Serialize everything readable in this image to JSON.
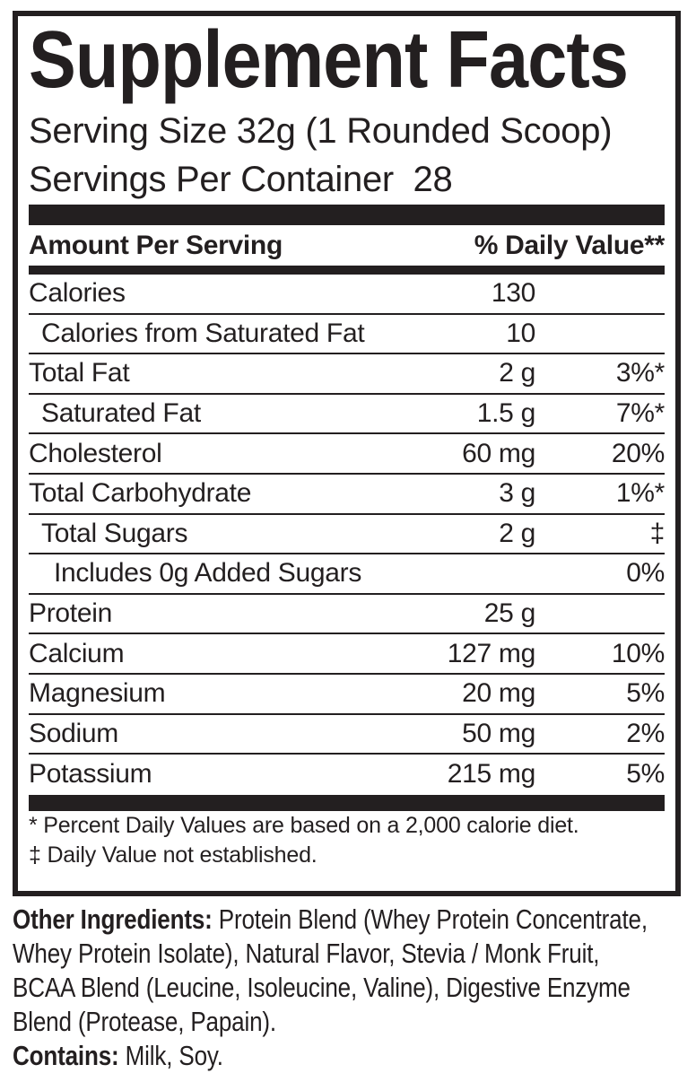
{
  "panel": {
    "title": "Supplement Facts",
    "serving_size": "Serving Size 32g (1 Rounded Scoop)",
    "servings_per_container": "Servings Per Container  28",
    "header": {
      "amount_label": "Amount Per Serving",
      "dv_label": "% Daily Value**"
    },
    "rows": [
      {
        "label": "Calories",
        "amount": "130",
        "dv": "",
        "indent": 0
      },
      {
        "label": "Calories from Saturated Fat",
        "amount": "10",
        "dv": "",
        "indent": 1
      },
      {
        "label": "Total Fat",
        "amount": "2 g",
        "dv": "3%*",
        "indent": 0
      },
      {
        "label": "Saturated Fat",
        "amount": "1.5 g",
        "dv": "7%*",
        "indent": 1
      },
      {
        "label": "Cholesterol",
        "amount": "60 mg",
        "dv": "20%",
        "indent": 0
      },
      {
        "label": "Total Carbohydrate",
        "amount": "3 g",
        "dv": "1%*",
        "indent": 0
      },
      {
        "label": "Total Sugars",
        "amount": "2 g",
        "dv": "‡",
        "indent": 1
      },
      {
        "label": "Includes 0g Added Sugars",
        "amount": "",
        "dv": "0%",
        "indent": 2
      },
      {
        "label": "Protein",
        "amount": "25 g",
        "dv": "",
        "indent": 0
      },
      {
        "label": "Calcium",
        "amount": "127 mg",
        "dv": "10%",
        "indent": 0
      },
      {
        "label": "Magnesium",
        "amount": "20 mg",
        "dv": "5%",
        "indent": 0
      },
      {
        "label": "Sodium",
        "amount": "50 mg",
        "dv": "2%",
        "indent": 0
      },
      {
        "label": "Potassium",
        "amount": "215 mg",
        "dv": "5%",
        "indent": 0
      }
    ],
    "footnotes": [
      "* Percent Daily Values are based on a 2,000 calorie diet.",
      "‡ Daily Value not established."
    ]
  },
  "ingredients": {
    "heading": "Other Ingredients:",
    "line1_rest": " Protein Blend (Whey Protein Concentrate,",
    "line2": "Whey Protein Isolate), Natural Flavor, Stevia / Monk Fruit,",
    "line3": "BCAA Blend (Leucine, Isoleucine, Valine), Digestive Enzyme",
    "line4": "Blend (Protease, Papain).",
    "contains_heading": "Contains:",
    "contains_rest": " Milk, Soy."
  },
  "colors": {
    "ink": "#231f20",
    "background": "#ffffff"
  }
}
